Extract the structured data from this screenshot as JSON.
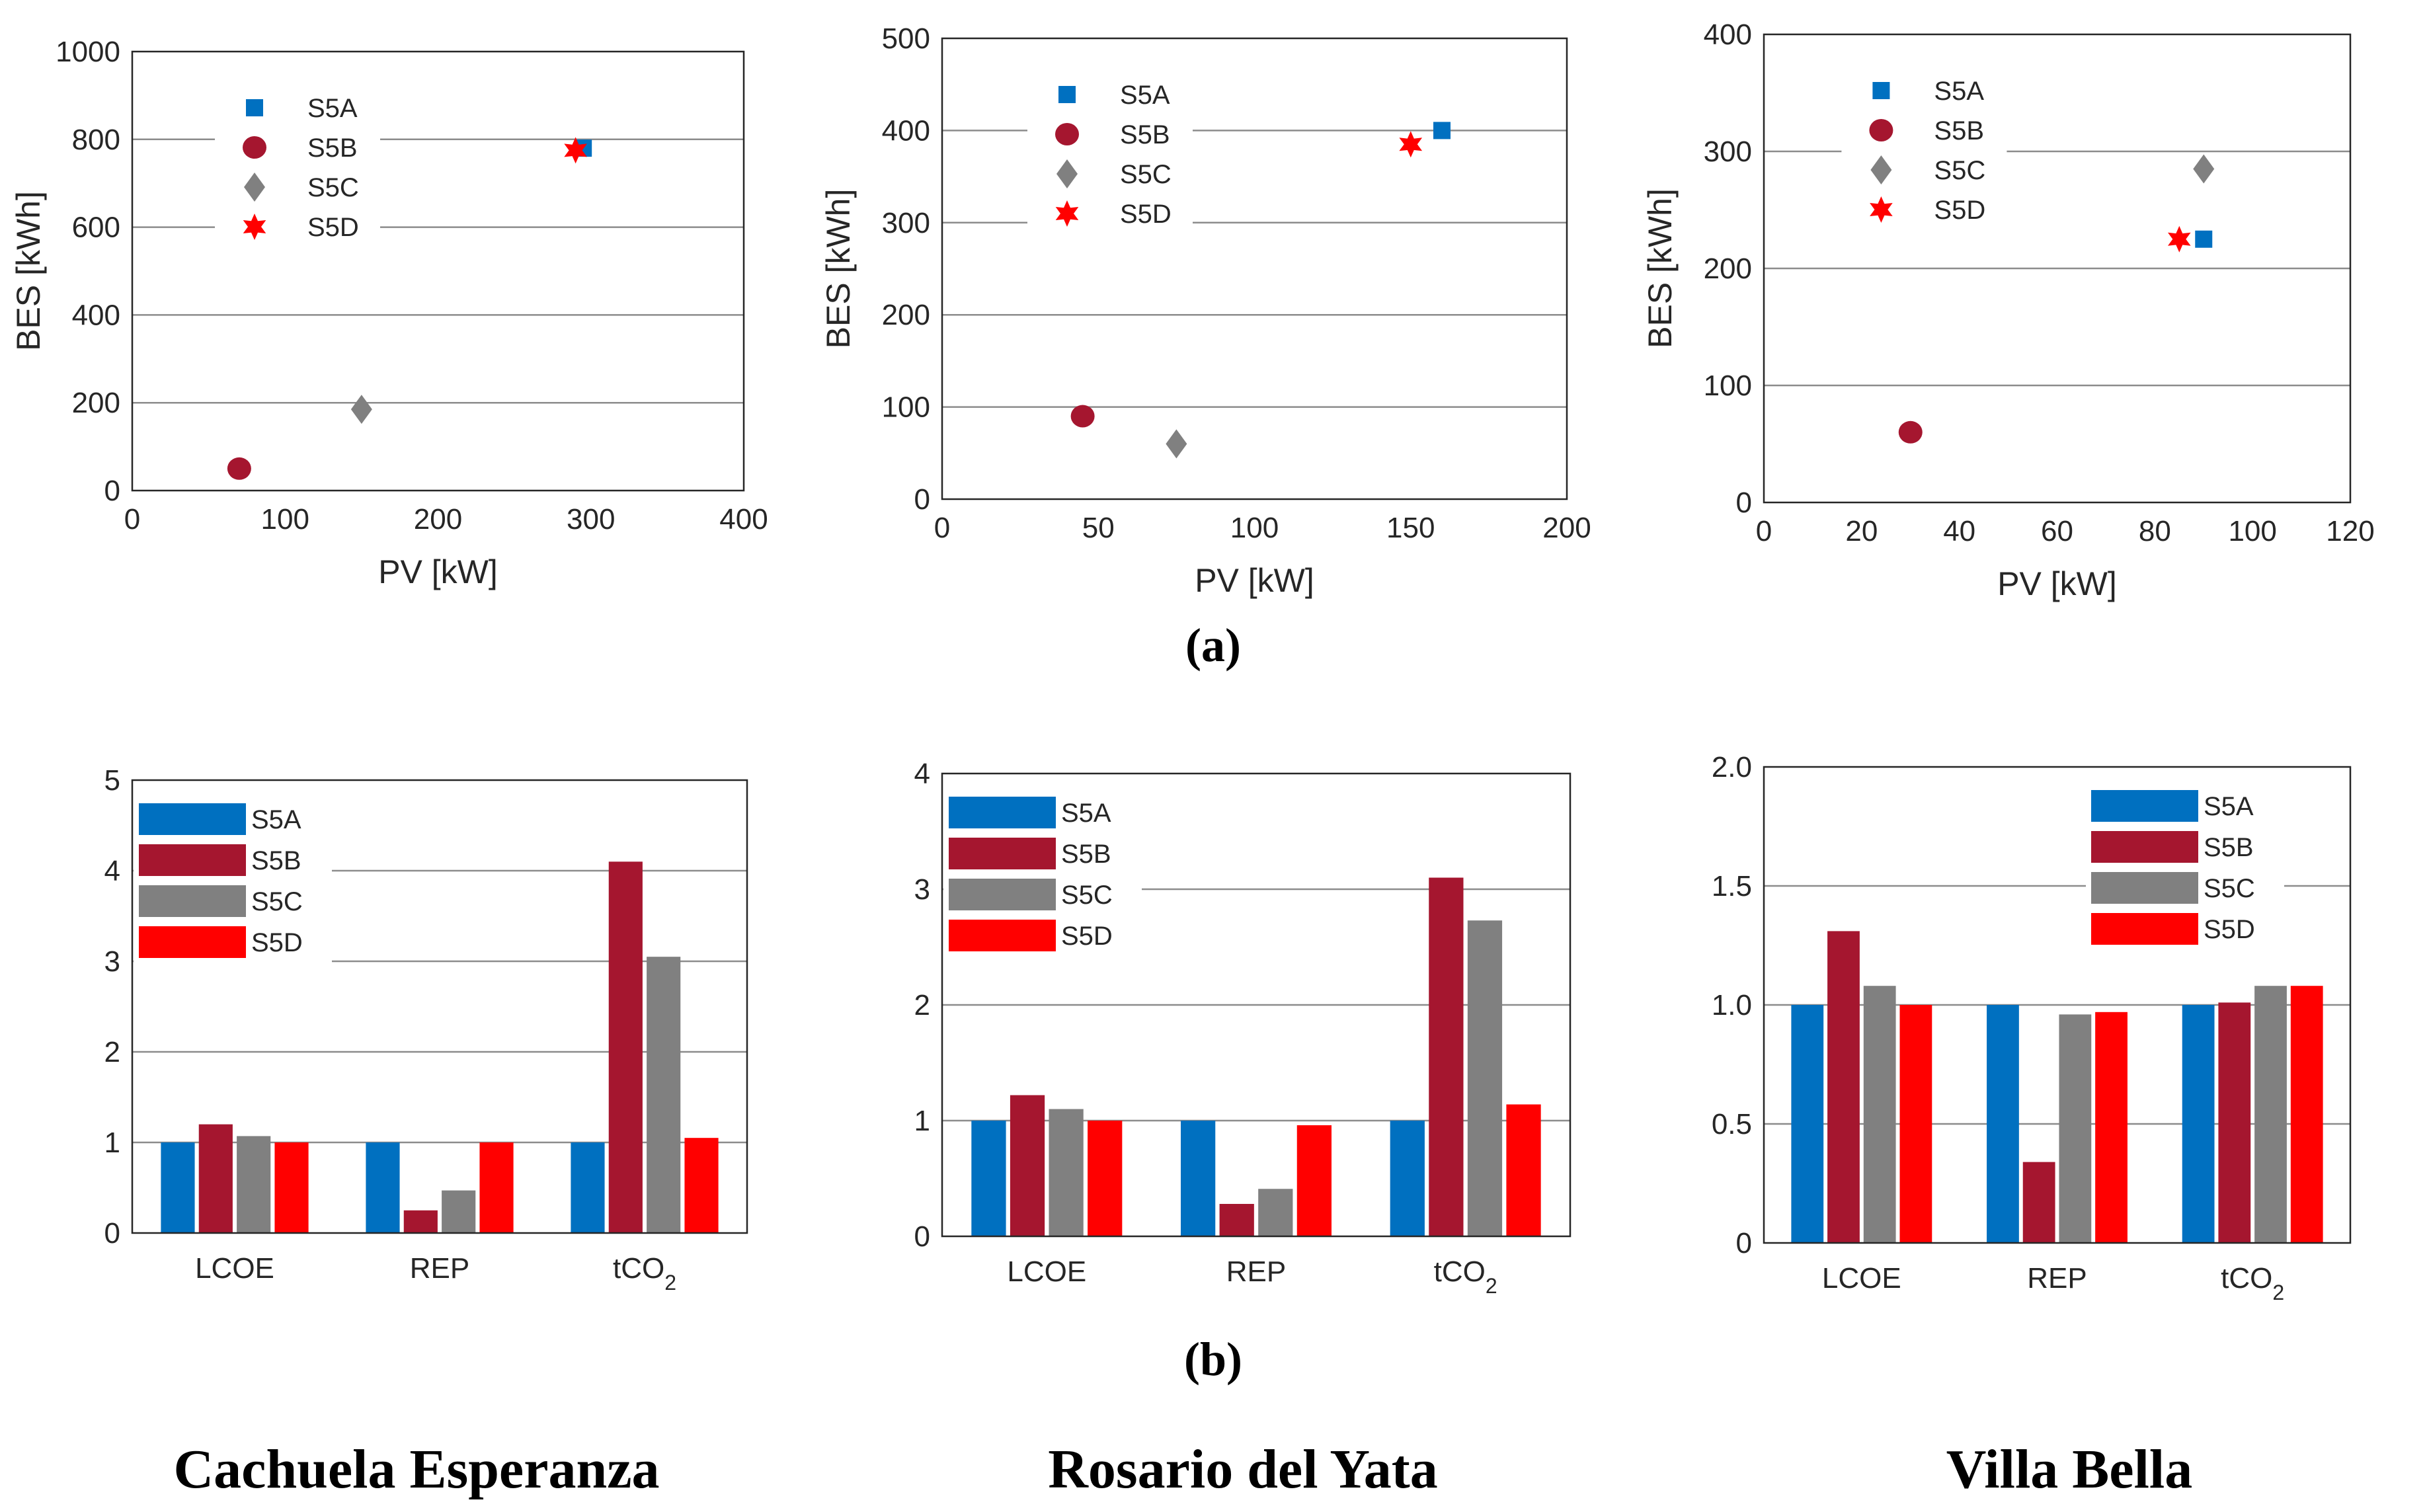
{
  "colors": {
    "S5A": "#0070c0",
    "S5B": "#a5162f",
    "S5C": "#808080",
    "S5D": "#ff0000"
  },
  "captions": {
    "a": "(a)",
    "b": "(b)"
  },
  "sites": [
    "Cachuela Esperanza",
    "Rosario del Yata",
    "Villa Bella"
  ],
  "chart_data": [
    {
      "type": "scatter",
      "site": "Cachuela Esperanza",
      "xlabel": "PV [kW]",
      "ylabel": "BES [kWh]",
      "xlim": [
        0,
        400
      ],
      "ylim": [
        0,
        1000
      ],
      "xticks": [
        "0",
        "100",
        "200",
        "300",
        "400"
      ],
      "yticks": [
        "0",
        "200",
        "400",
        "600",
        "800",
        "1000"
      ],
      "legend": [
        "S5A",
        "S5B",
        "S5C",
        "S5D"
      ],
      "legend_position": "top-left",
      "series": [
        {
          "name": "S5A",
          "marker": "square",
          "x": 295,
          "y": 780
        },
        {
          "name": "S5B",
          "marker": "circle",
          "x": 70,
          "y": 50
        },
        {
          "name": "S5C",
          "marker": "diamond",
          "x": 150,
          "y": 185
        },
        {
          "name": "S5D",
          "marker": "star",
          "x": 290,
          "y": 775
        }
      ]
    },
    {
      "type": "scatter",
      "site": "Rosario del Yata",
      "xlabel": "PV [kW]",
      "ylabel": "BES [kWh]",
      "xlim": [
        0,
        200
      ],
      "ylim": [
        0,
        500
      ],
      "xticks": [
        "0",
        "50",
        "100",
        "150",
        "200"
      ],
      "yticks": [
        "0",
        "100",
        "200",
        "300",
        "400",
        "500"
      ],
      "legend": [
        "S5A",
        "S5B",
        "S5C",
        "S5D"
      ],
      "legend_position": "top-left",
      "series": [
        {
          "name": "S5A",
          "marker": "square",
          "x": 160,
          "y": 400
        },
        {
          "name": "S5B",
          "marker": "circle",
          "x": 45,
          "y": 90
        },
        {
          "name": "S5C",
          "marker": "diamond",
          "x": 75,
          "y": 60
        },
        {
          "name": "S5D",
          "marker": "star",
          "x": 150,
          "y": 385
        }
      ]
    },
    {
      "type": "scatter",
      "site": "Villa Bella",
      "xlabel": "PV [kW]",
      "ylabel": "BES [kWh]",
      "xlim": [
        0,
        120
      ],
      "ylim": [
        0,
        400
      ],
      "xticks": [
        "0",
        "20",
        "40",
        "60",
        "80",
        "100",
        "120"
      ],
      "yticks": [
        "0",
        "100",
        "200",
        "300",
        "400"
      ],
      "legend": [
        "S5A",
        "S5B",
        "S5C",
        "S5D"
      ],
      "legend_position": "top-left",
      "series": [
        {
          "name": "S5A",
          "marker": "square",
          "x": 90,
          "y": 225
        },
        {
          "name": "S5B",
          "marker": "circle",
          "x": 30,
          "y": 60
        },
        {
          "name": "S5C",
          "marker": "diamond",
          "x": 90,
          "y": 285
        },
        {
          "name": "S5D",
          "marker": "star",
          "x": 85,
          "y": 225
        }
      ]
    },
    {
      "type": "bar",
      "site": "Cachuela Esperanza",
      "categories": [
        "LCOE",
        "REP",
        "tCO2"
      ],
      "ylim": [
        0,
        5
      ],
      "yticks": [
        "0",
        "1",
        "2",
        "3",
        "4",
        "5"
      ],
      "legend_position": "top-left",
      "series": [
        {
          "name": "S5A",
          "values": [
            1.0,
            1.0,
            1.0
          ]
        },
        {
          "name": "S5B",
          "values": [
            1.2,
            0.25,
            4.1
          ]
        },
        {
          "name": "S5C",
          "values": [
            1.07,
            0.47,
            3.05
          ]
        },
        {
          "name": "S5D",
          "values": [
            1.0,
            1.0,
            1.05
          ]
        }
      ]
    },
    {
      "type": "bar",
      "site": "Rosario del Yata",
      "categories": [
        "LCOE",
        "REP",
        "tCO2"
      ],
      "ylim": [
        0,
        4
      ],
      "yticks": [
        "0",
        "1",
        "2",
        "3",
        "4"
      ],
      "legend_position": "top-left",
      "series": [
        {
          "name": "S5A",
          "values": [
            1.0,
            1.0,
            1.0
          ]
        },
        {
          "name": "S5B",
          "values": [
            1.22,
            0.28,
            3.1
          ]
        },
        {
          "name": "S5C",
          "values": [
            1.1,
            0.41,
            2.73
          ]
        },
        {
          "name": "S5D",
          "values": [
            1.0,
            0.96,
            1.14
          ]
        }
      ]
    },
    {
      "type": "bar",
      "site": "Villa Bella",
      "categories": [
        "LCOE",
        "REP",
        "tCO2"
      ],
      "ylim": [
        0,
        2
      ],
      "yticks": [
        "0",
        "0.5",
        "1.0",
        "1.5",
        "2.0"
      ],
      "legend_position": "top-right",
      "series": [
        {
          "name": "S5A",
          "values": [
            1.0,
            1.0,
            1.0
          ]
        },
        {
          "name": "S5B",
          "values": [
            1.31,
            0.34,
            1.01
          ]
        },
        {
          "name": "S5C",
          "values": [
            1.08,
            0.96,
            1.08
          ]
        },
        {
          "name": "S5D",
          "values": [
            1.0,
            0.97,
            1.08
          ]
        }
      ]
    }
  ]
}
